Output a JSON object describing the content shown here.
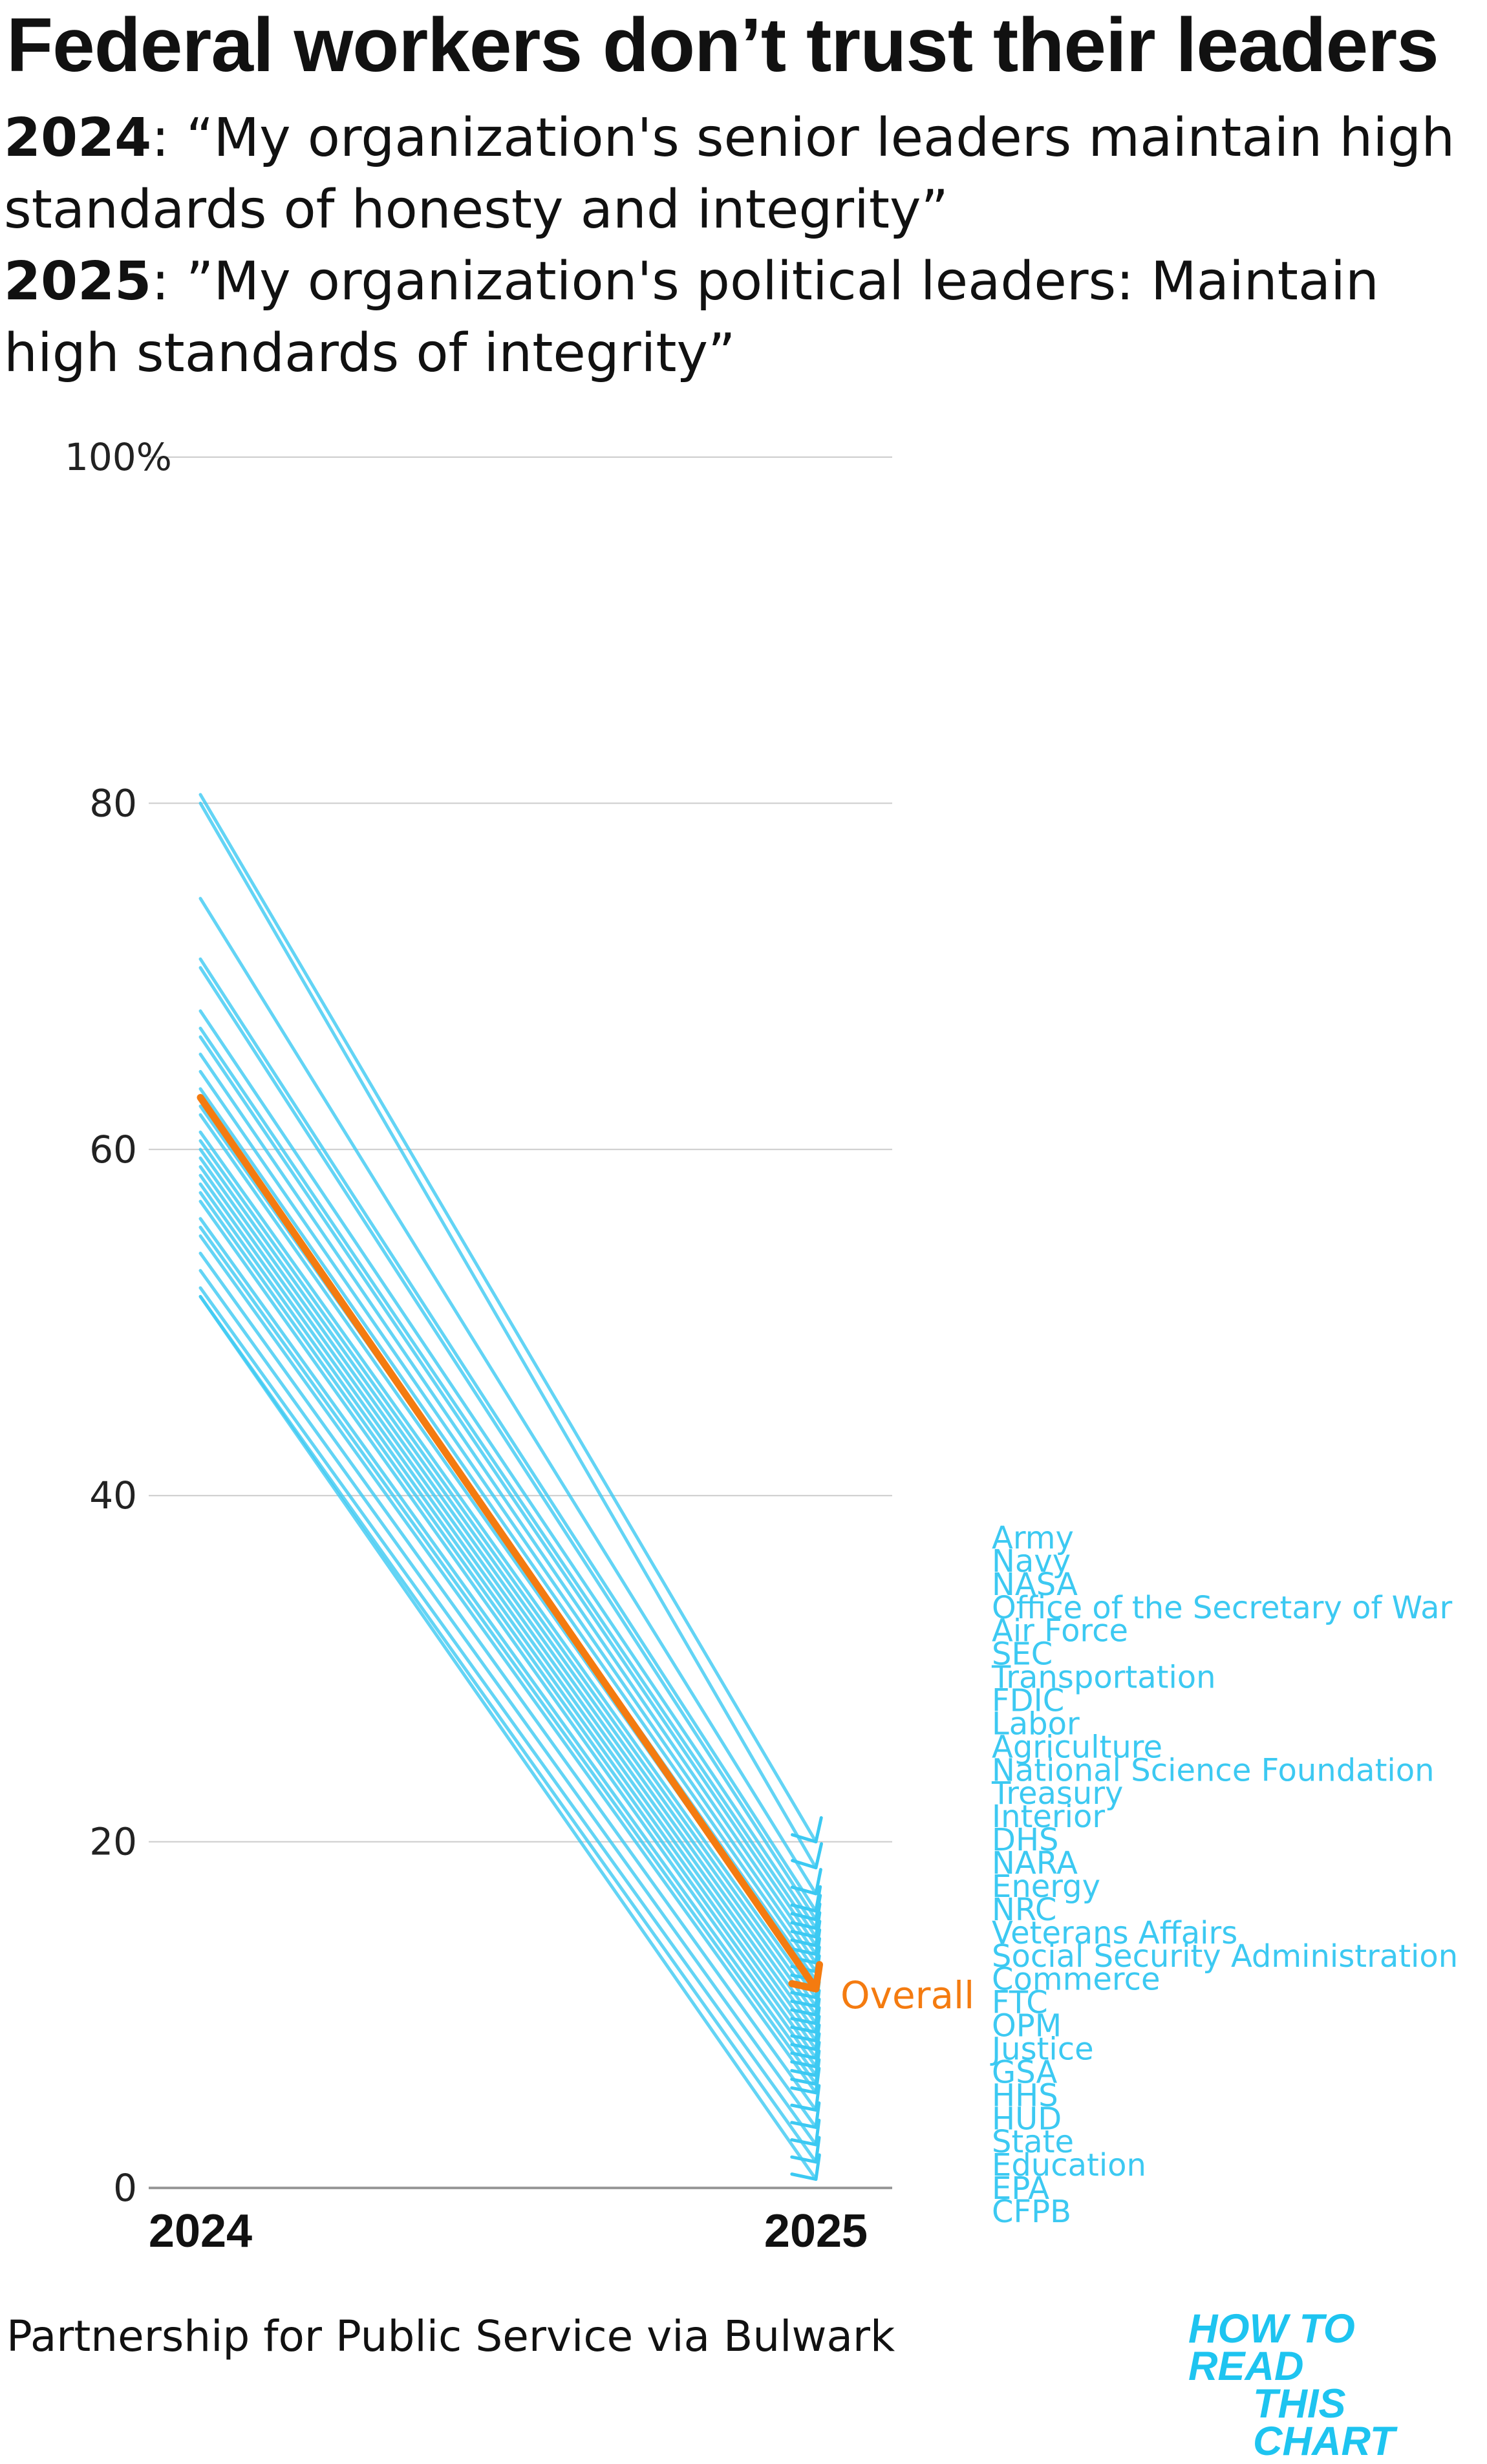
{
  "title": "Federal workers don’t trust their leaders",
  "subtitle": {
    "line1_year": "2024",
    "line1_text": ": “My organization's senior leaders maintain high standards of honesty and integrity”",
    "line2_year": "2025",
    "line2_text": ": ”My organization's political leaders: Maintain high standards of integrity”"
  },
  "source": "Partnership for Public Service via Bulwark",
  "brand": {
    "line1": "HOW TO READ",
    "line2": "THIS CHART"
  },
  "colors": {
    "agency": "#3cc9f2",
    "overall": "#f47b10",
    "grid": "#cccccc",
    "axis": "#999999",
    "brand": "#1ec4f0"
  },
  "chart_data": {
    "type": "line",
    "chart_style": "slope",
    "x": [
      "2024",
      "2025"
    ],
    "ylim": [
      0,
      100
    ],
    "yticks": [
      0,
      20,
      40,
      60,
      80,
      100
    ],
    "ytick_labels": [
      "0",
      "20",
      "40",
      "60",
      "80",
      "100%"
    ],
    "grid": true,
    "overall": {
      "name": "Overall",
      "values": [
        63,
        11.5
      ]
    },
    "series_unlabeled_values": [
      [
        80.5,
        20
      ],
      [
        80,
        18.5
      ],
      [
        74.5,
        17
      ],
      [
        71,
        16
      ],
      [
        70.5,
        15.5
      ],
      [
        68,
        15
      ],
      [
        67,
        14.5
      ],
      [
        66.5,
        14
      ],
      [
        65.5,
        13.5
      ],
      [
        64.5,
        13
      ],
      [
        63.5,
        12.5
      ],
      [
        62.5,
        12
      ],
      [
        62,
        11.5
      ],
      [
        61,
        11
      ],
      [
        60.5,
        10.5
      ],
      [
        60,
        10
      ],
      [
        59.5,
        9.5
      ],
      [
        59,
        9
      ],
      [
        58.5,
        8.5
      ],
      [
        58,
        8
      ],
      [
        57.5,
        7.5
      ],
      [
        57,
        7
      ],
      [
        56,
        6.5
      ],
      [
        55.5,
        6
      ],
      [
        55,
        5.5
      ],
      [
        54,
        4.5
      ],
      [
        53,
        3.5
      ],
      [
        52,
        2.5
      ],
      [
        51.5,
        1.5
      ],
      [
        51.5,
        0.5
      ]
    ],
    "end_labels": [
      "Army",
      "Navy",
      "NASA",
      "Office of the Secretary of War",
      "Air Force",
      "SEC",
      "Transportation",
      "FDIC",
      "Labor",
      "Agriculture",
      "National Science Foundation",
      "Treasury",
      "Interior",
      "DHS",
      "NARA",
      "Energy",
      "NRC",
      "Veterans Affairs",
      "Social Security Administration",
      "Commerce",
      "FTC",
      "OPM",
      "Justice",
      "GSA",
      "HHS",
      "HUD",
      "State",
      "Education",
      "EPA",
      "CFPB"
    ]
  }
}
